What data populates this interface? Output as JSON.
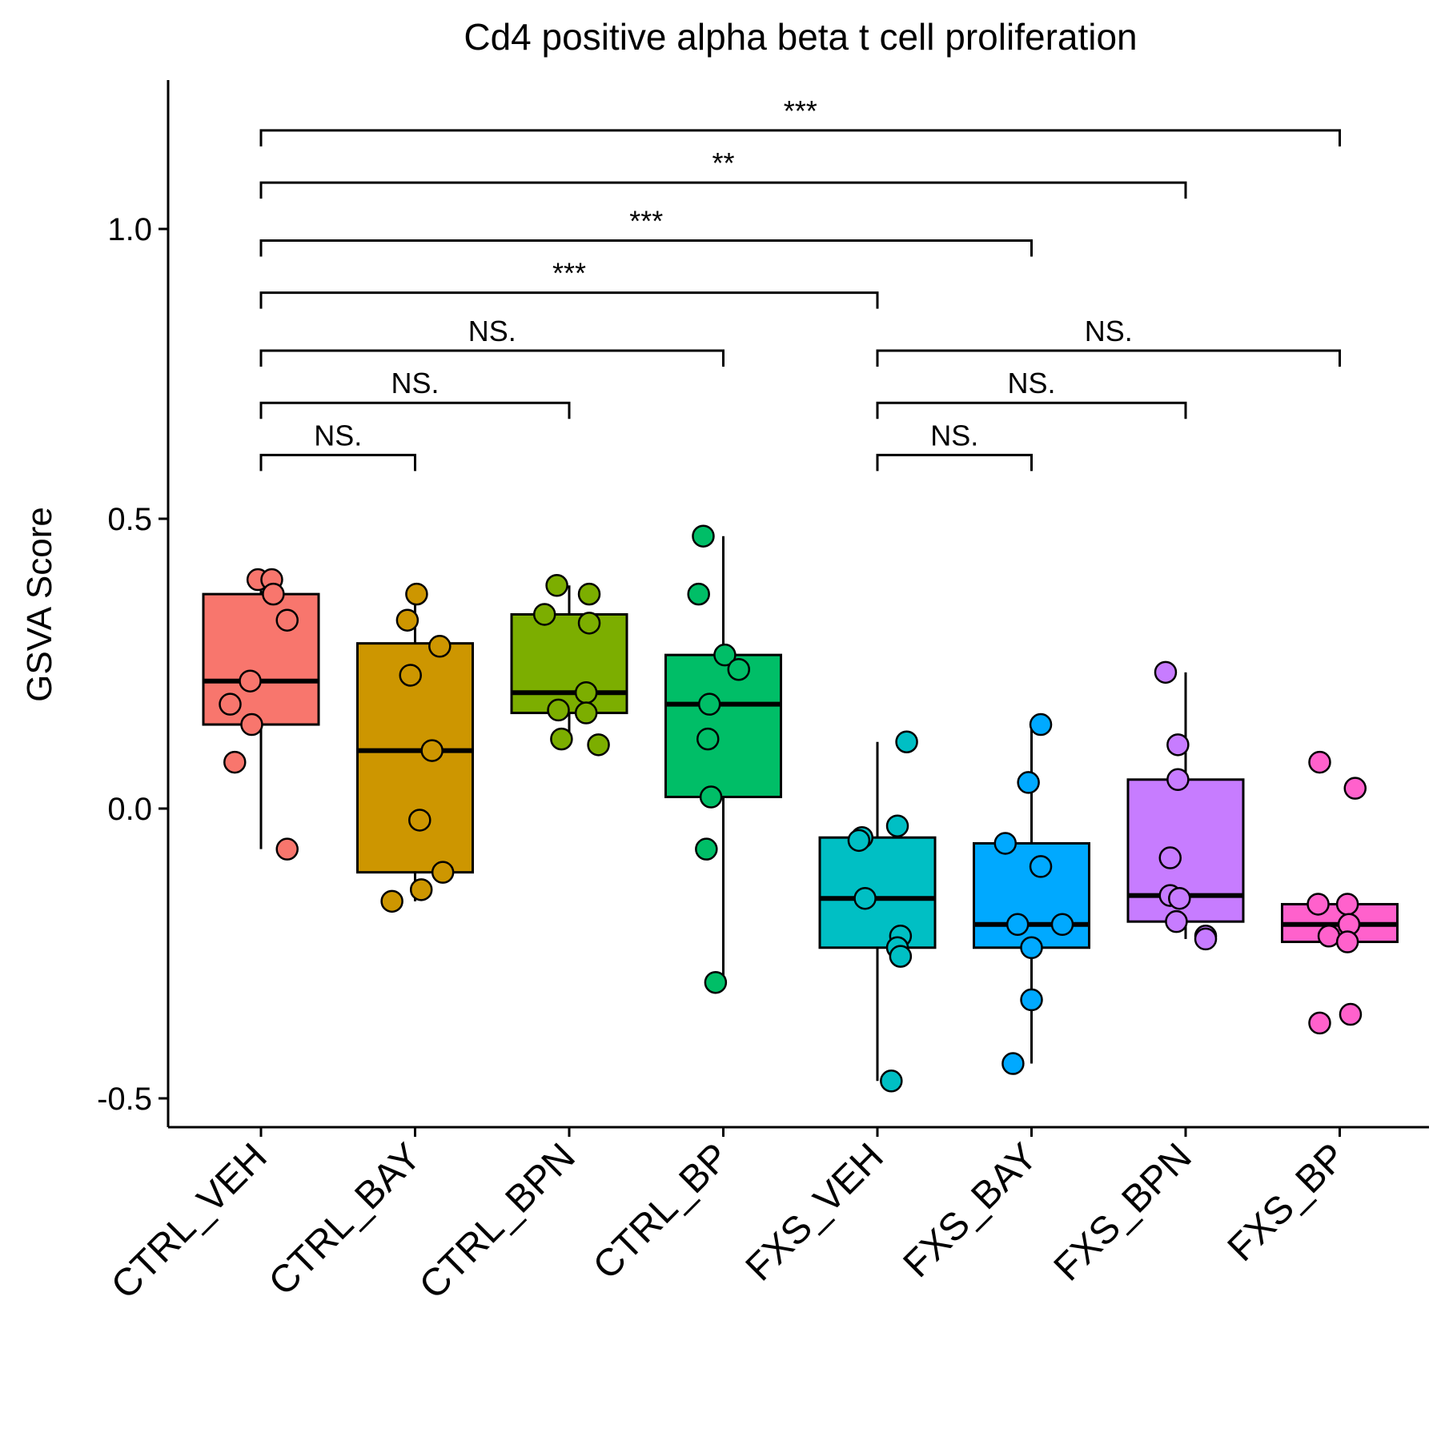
{
  "chart_data": {
    "type": "box",
    "title": "Cd4 positive alpha beta t cell proliferation",
    "xlabel": "",
    "ylabel": "GSVA Score",
    "ylim": [
      -0.55,
      1.25
    ],
    "yticks": [
      -0.5,
      0.0,
      0.5,
      1.0
    ],
    "ytick_labels": [
      "-0.5",
      "0.0",
      "0.5",
      "1.0"
    ],
    "categories": [
      "CTRL_VEH",
      "CTRL_BAY",
      "CTRL_BPN",
      "CTRL_BP",
      "FXS_VEH",
      "FXS_BAY",
      "FXS_BPN",
      "FXS_BP"
    ],
    "colors": [
      "#F8766D",
      "#CD9600",
      "#7CAE00",
      "#00BE67",
      "#00BFC4",
      "#00A9FF",
      "#C77CFF",
      "#FF61CC"
    ],
    "boxes": [
      {
        "whisker_low": -0.07,
        "q1": 0.145,
        "median": 0.22,
        "q3": 0.37,
        "whisker_high": 0.4
      },
      {
        "whisker_low": -0.16,
        "q1": -0.11,
        "median": 0.1,
        "q3": 0.285,
        "whisker_high": 0.37
      },
      {
        "whisker_low": 0.11,
        "q1": 0.165,
        "median": 0.2,
        "q3": 0.335,
        "whisker_high": 0.385
      },
      {
        "whisker_low": -0.3,
        "q1": 0.02,
        "median": 0.18,
        "q3": 0.265,
        "whisker_high": 0.47
      },
      {
        "whisker_low": -0.47,
        "q1": -0.24,
        "median": -0.155,
        "q3": -0.05,
        "whisker_high": 0.115
      },
      {
        "whisker_low": -0.44,
        "q1": -0.24,
        "median": -0.2,
        "q3": -0.06,
        "whisker_high": 0.145
      },
      {
        "whisker_low": -0.225,
        "q1": -0.195,
        "median": -0.15,
        "q3": 0.05,
        "whisker_high": 0.235
      },
      {
        "whisker_low": -0.23,
        "q1": -0.23,
        "median": -0.2,
        "q3": -0.165,
        "whisker_high": -0.165
      }
    ],
    "points": [
      [
        0.395,
        0.395,
        0.37,
        0.325,
        0.22,
        0.18,
        0.145,
        0.08,
        -0.07
      ],
      [
        0.37,
        0.325,
        0.28,
        0.23,
        0.1,
        -0.02,
        -0.11,
        -0.14,
        -0.16
      ],
      [
        0.385,
        0.37,
        0.335,
        0.32,
        0.2,
        0.17,
        0.165,
        0.12,
        0.11
      ],
      [
        0.47,
        0.37,
        0.265,
        0.24,
        0.18,
        0.12,
        0.02,
        -0.07,
        -0.3
      ],
      [
        0.115,
        -0.03,
        -0.05,
        -0.055,
        -0.155,
        -0.22,
        -0.24,
        -0.255,
        -0.47
      ],
      [
        0.145,
        0.045,
        -0.06,
        -0.1,
        -0.2,
        -0.2,
        -0.24,
        -0.33,
        -0.44
      ],
      [
        0.235,
        0.11,
        0.05,
        -0.085,
        -0.15,
        -0.155,
        -0.195,
        -0.22,
        -0.225
      ],
      [
        0.08,
        0.035,
        -0.165,
        -0.165,
        -0.2,
        -0.22,
        -0.23,
        -0.355,
        -0.37
      ]
    ],
    "point_offsets": [
      [
        -0.02,
        0.07,
        0.08,
        0.17,
        -0.07,
        -0.2,
        -0.06,
        -0.17,
        0.17
      ],
      [
        0.01,
        -0.05,
        0.16,
        -0.03,
        0.11,
        0.03,
        0.18,
        0.04,
        -0.15
      ],
      [
        -0.08,
        0.13,
        -0.16,
        0.13,
        0.11,
        -0.07,
        0.11,
        -0.05,
        0.19
      ],
      [
        -0.13,
        -0.16,
        0.01,
        0.1,
        -0.09,
        -0.1,
        -0.08,
        -0.11,
        -0.05
      ],
      [
        0.19,
        0.13,
        -0.1,
        -0.12,
        -0.08,
        0.15,
        0.13,
        0.15,
        0.09
      ],
      [
        0.06,
        -0.02,
        -0.17,
        0.06,
        -0.09,
        0.2,
        0.0,
        0.0,
        -0.12
      ],
      [
        -0.13,
        -0.05,
        -0.05,
        -0.1,
        -0.1,
        -0.04,
        -0.06,
        0.13,
        0.13
      ],
      [
        -0.13,
        0.1,
        -0.14,
        0.05,
        0.06,
        -0.07,
        0.05,
        0.07,
        -0.13
      ]
    ],
    "comparisons": [
      {
        "from": 0,
        "to": 1,
        "y": 0.61,
        "label": "NS."
      },
      {
        "from": 0,
        "to": 2,
        "y": 0.7,
        "label": "NS."
      },
      {
        "from": 0,
        "to": 3,
        "y": 0.79,
        "label": "NS."
      },
      {
        "from": 0,
        "to": 4,
        "y": 0.89,
        "label": "***"
      },
      {
        "from": 0,
        "to": 5,
        "y": 0.98,
        "label": "***"
      },
      {
        "from": 0,
        "to": 6,
        "y": 1.08,
        "label": "**"
      },
      {
        "from": 0,
        "to": 7,
        "y": 1.17,
        "label": "***"
      },
      {
        "from": 4,
        "to": 5,
        "y": 0.61,
        "label": "NS."
      },
      {
        "from": 4,
        "to": 6,
        "y": 0.7,
        "label": "NS."
      },
      {
        "from": 4,
        "to": 7,
        "y": 0.79,
        "label": "NS."
      }
    ]
  }
}
